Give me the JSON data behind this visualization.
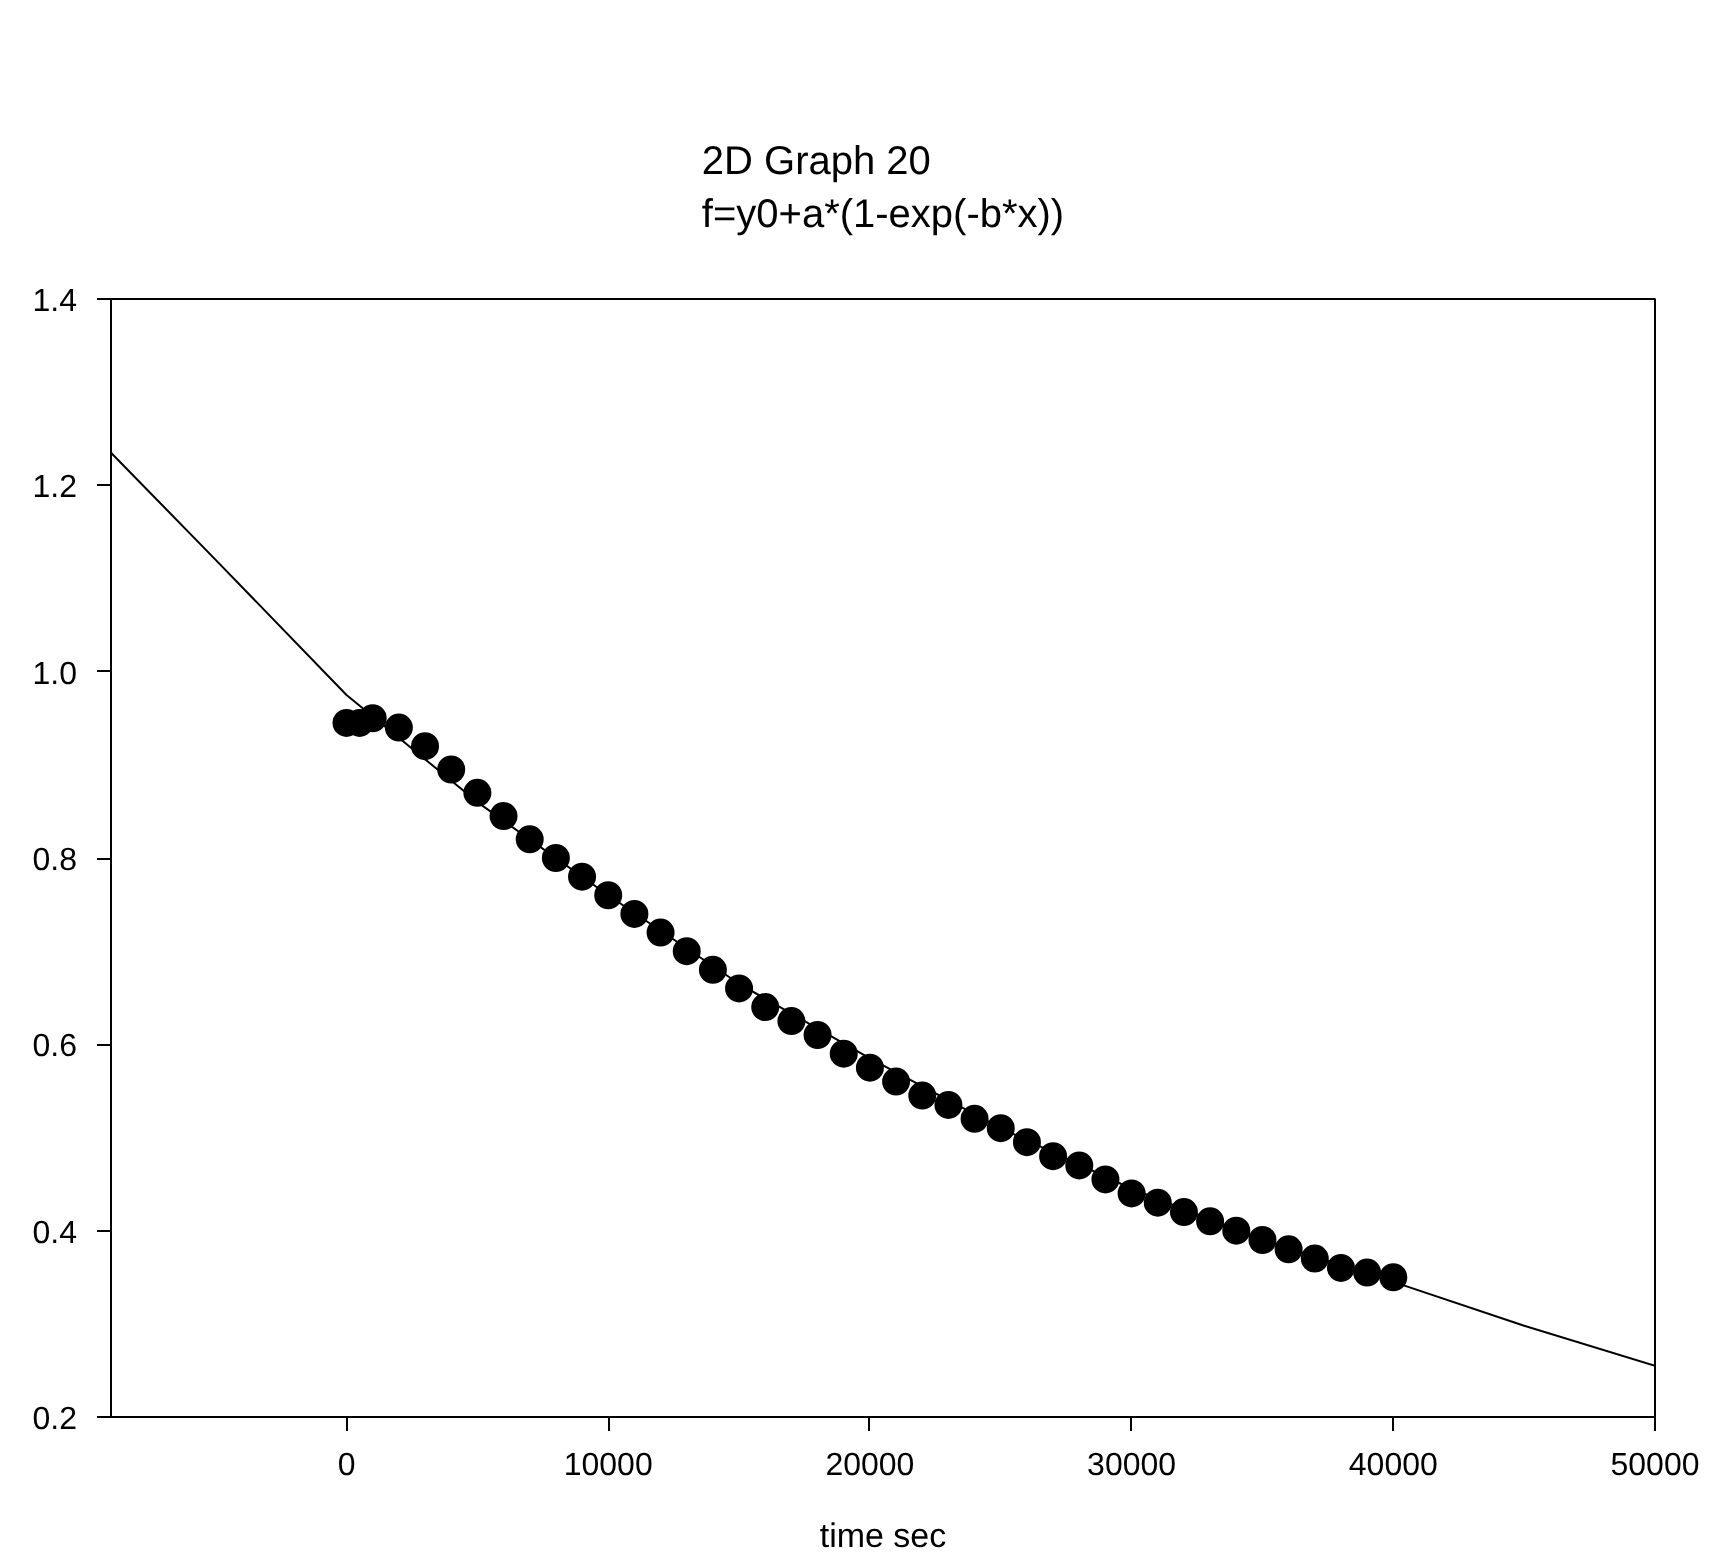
{
  "chart_data": {
    "type": "scatter",
    "title": "2D Graph 20",
    "subtitle": "f=y0+a*(1-exp(-b*x))",
    "xlabel": "time sec",
    "xlim": [
      -9000,
      50000
    ],
    "xticks": [
      0,
      10000,
      20000,
      30000,
      40000,
      50000
    ],
    "ylim": [
      0.2,
      1.4
    ],
    "yticks": [
      0.2,
      0.4,
      0.6,
      0.8,
      {
        "value": 1.0,
        "label": "1.0"
      },
      1.2,
      1.4
    ],
    "grid": false,
    "series": [
      {
        "type": "line",
        "color": "#000000",
        "marker": "none",
        "line_style": "solid",
        "x": [
          -9000,
          -5000,
          0,
          5000,
          10000,
          15000,
          20000,
          25000,
          30000,
          35000,
          40000,
          45000,
          50000
        ],
        "values": [
          1.235,
          1.12,
          0.975,
          0.86,
          0.76,
          0.665,
          0.585,
          0.51,
          0.445,
          0.39,
          0.345,
          0.298,
          0.255
        ]
      },
      {
        "color": "#000000",
        "marker": "circle",
        "x": [
          0,
          500,
          1000,
          2000,
          3000,
          4000,
          5000,
          6000,
          7000,
          8000,
          9000,
          10000,
          11000,
          12000,
          13000,
          14000,
          15000,
          16000,
          17000,
          18000,
          19000,
          20000,
          21000,
          22000,
          23000,
          24000,
          25000,
          26000,
          27000,
          28000,
          29000,
          30000,
          31000,
          32000,
          33000,
          34000,
          35000,
          36000,
          37000,
          38000,
          39000,
          40000
        ],
        "values": [
          0.945,
          0.945,
          0.95,
          0.94,
          0.92,
          0.895,
          0.87,
          0.845,
          0.82,
          0.8,
          0.78,
          0.76,
          0.74,
          0.72,
          0.7,
          0.68,
          0.66,
          0.64,
          0.625,
          0.61,
          0.59,
          0.575,
          0.56,
          0.545,
          0.535,
          0.52,
          0.51,
          0.495,
          0.48,
          0.47,
          0.455,
          0.44,
          0.43,
          0.42,
          0.41,
          0.4,
          0.39,
          0.38,
          0.37,
          0.36,
          0.355,
          0.35
        ]
      }
    ]
  }
}
